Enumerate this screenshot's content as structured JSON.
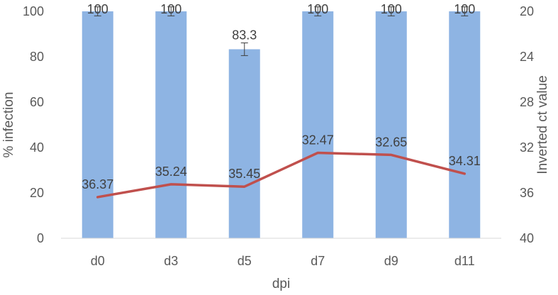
{
  "chart_data": {
    "type": "bar",
    "categories": [
      "d0",
      "d3",
      "d5",
      "d7",
      "d9",
      "d11"
    ],
    "xlabel": "dpi",
    "series": [
      {
        "name": "",
        "type": "bar",
        "axis": "left",
        "values": [
          100,
          100,
          83.3,
          100,
          100,
          100
        ],
        "labels": [
          "100",
          "100",
          "83.3",
          "100",
          "100",
          "100"
        ],
        "error": [
          2,
          2,
          2.8,
          2,
          2,
          2
        ],
        "color": "#8EB4E3"
      },
      {
        "name": "",
        "type": "line",
        "axis": "right",
        "values": [
          36.37,
          35.24,
          35.45,
          32.47,
          32.65,
          34.31
        ],
        "labels": [
          "36.37",
          "35.24",
          "35.45",
          "32.47",
          "32.65",
          "34.31"
        ],
        "color": "#C0504D"
      }
    ],
    "y_left": {
      "label": "% infection",
      "ylim": [
        0,
        100
      ],
      "ticks": [
        "0",
        "20",
        "40",
        "60",
        "80",
        "100"
      ]
    },
    "y_right": {
      "label": "Inverted ct value",
      "ylim": [
        20,
        40
      ],
      "inverted": true,
      "ticks": [
        "20",
        "24",
        "28",
        "32",
        "36",
        "40"
      ]
    },
    "grid": false,
    "legend": "none"
  }
}
